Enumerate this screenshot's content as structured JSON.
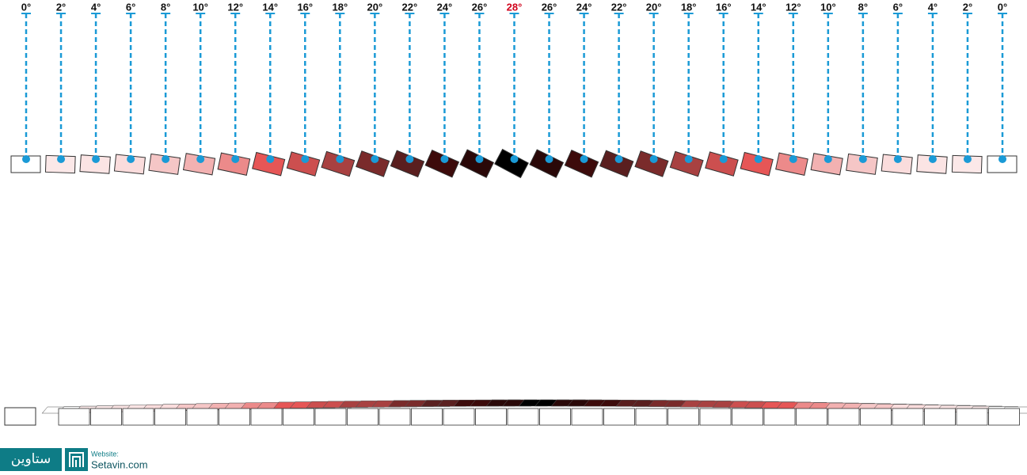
{
  "columns": [
    {
      "label": "0°",
      "color": "#ffffff"
    },
    {
      "label": "2°",
      "color": "#fbe8e8"
    },
    {
      "label": "4°",
      "color": "#fbe4e4"
    },
    {
      "label": "6°",
      "color": "#fadcdc"
    },
    {
      "label": "8°",
      "color": "#f5c6c6"
    },
    {
      "label": "10°",
      "color": "#f2b1b1"
    },
    {
      "label": "12°",
      "color": "#ec8a8a"
    },
    {
      "label": "14°",
      "color": "#e65656"
    },
    {
      "label": "16°",
      "color": "#cc4f4f"
    },
    {
      "label": "18°",
      "color": "#a84141"
    },
    {
      "label": "20°",
      "color": "#7a2b2b"
    },
    {
      "label": "22°",
      "color": "#5a1f1f"
    },
    {
      "label": "24°",
      "color": "#3d0b0b"
    },
    {
      "label": "26°",
      "color": "#2a0808"
    },
    {
      "label": "28°",
      "color": "#000000",
      "highlighted": true
    },
    {
      "label": "26°",
      "color": "#2a0808"
    },
    {
      "label": "24°",
      "color": "#3d0b0b"
    },
    {
      "label": "22°",
      "color": "#5a1f1f"
    },
    {
      "label": "20°",
      "color": "#7a2b2b"
    },
    {
      "label": "18°",
      "color": "#a84141"
    },
    {
      "label": "16°",
      "color": "#cc4f4f"
    },
    {
      "label": "14°",
      "color": "#e65656"
    },
    {
      "label": "12°",
      "color": "#ec8a8a"
    },
    {
      "label": "10°",
      "color": "#f2b1b1"
    },
    {
      "label": "8°",
      "color": "#f5c6c6"
    },
    {
      "label": "6°",
      "color": "#fadcdc"
    },
    {
      "label": "4°",
      "color": "#fbe4e4"
    },
    {
      "label": "2°",
      "color": "#fbe8e8"
    },
    {
      "label": "0°",
      "color": "#ffffff"
    }
  ],
  "highlight_color": "#d0021b",
  "line_color": "#1a9ad6",
  "logo": {
    "name": "ستاوین",
    "website_label": "Website:",
    "url": "Setavin.com"
  }
}
